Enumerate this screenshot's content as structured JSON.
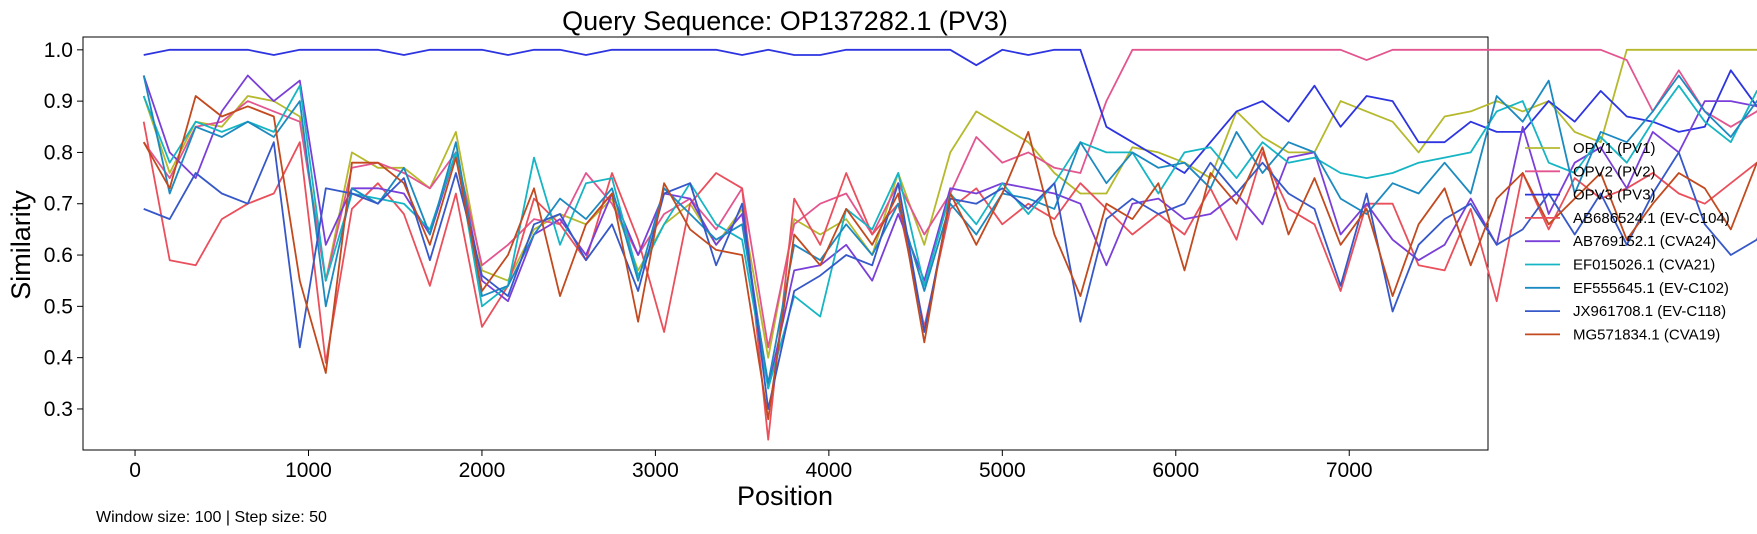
{
  "chart_data": {
    "type": "line",
    "title": "Query Sequence: OP137282.1 (PV3)",
    "xlabel": "Position",
    "ylabel": "Similarity",
    "xlim": [
      -300,
      7800
    ],
    "ylim": [
      0.22,
      1.025
    ],
    "xticks": [
      0,
      1000,
      2000,
      3000,
      4000,
      5000,
      6000,
      7000
    ],
    "yticks": [
      0.3,
      0.4,
      0.5,
      0.6,
      0.7,
      0.8,
      0.9,
      1.0
    ],
    "grid": false,
    "legend_position": "right",
    "x_start": 50,
    "x_step": 150,
    "series": [
      {
        "name": "OPV1 (PV1)",
        "color": "#b5b92b",
        "values": [
          0.91,
          0.76,
          0.86,
          0.85,
          0.91,
          0.9,
          0.87,
          0.55,
          0.8,
          0.77,
          0.77,
          0.73,
          0.84,
          0.57,
          0.55,
          0.65,
          0.68,
          0.66,
          0.71,
          0.57,
          0.66,
          0.7,
          0.62,
          0.69,
          0.4,
          0.67,
          0.64,
          0.67,
          0.6,
          0.76,
          0.62,
          0.8,
          0.88,
          0.85,
          0.82,
          0.76,
          0.72,
          0.72,
          0.81,
          0.8,
          0.78,
          0.75,
          0.88,
          0.83,
          0.8,
          0.8,
          0.9,
          0.88,
          0.86,
          0.8,
          0.87,
          0.88,
          0.9,
          0.88,
          0.9,
          0.84,
          0.82,
          1.0,
          1.0,
          1.0,
          1.0,
          1.0,
          1.0,
          0.99
        ]
      },
      {
        "name": "OPV2 (PV2)",
        "color": "#e3558f",
        "values": [
          0.82,
          0.75,
          0.85,
          0.86,
          0.9,
          0.88,
          0.86,
          0.55,
          0.77,
          0.78,
          0.76,
          0.73,
          0.8,
          0.58,
          0.62,
          0.67,
          0.66,
          0.76,
          0.7,
          0.6,
          0.68,
          0.71,
          0.65,
          0.73,
          0.42,
          0.66,
          0.7,
          0.72,
          0.64,
          0.74,
          0.64,
          0.72,
          0.83,
          0.78,
          0.8,
          0.77,
          0.76,
          0.9,
          1.0,
          1.0,
          1.0,
          1.0,
          1.0,
          1.0,
          1.0,
          1.0,
          1.0,
          0.98,
          1.0,
          1.0,
          1.0,
          1.0,
          1.0,
          1.0,
          1.0,
          1.0,
          1.0,
          0.98,
          0.88,
          0.96,
          0.88,
          0.85,
          0.88,
          0.95
        ]
      },
      {
        "name": "OPV3 (PV3)",
        "color": "#2d34e0",
        "values": [
          0.99,
          1.0,
          1.0,
          1.0,
          1.0,
          0.99,
          1.0,
          1.0,
          1.0,
          1.0,
          0.99,
          1.0,
          1.0,
          1.0,
          0.99,
          1.0,
          1.0,
          0.99,
          1.0,
          1.0,
          1.0,
          1.0,
          1.0,
          0.99,
          1.0,
          0.99,
          0.99,
          1.0,
          1.0,
          1.0,
          1.0,
          1.0,
          0.97,
          1.0,
          0.99,
          1.0,
          1.0,
          0.85,
          0.82,
          0.79,
          0.76,
          0.82,
          0.88,
          0.9,
          0.86,
          0.93,
          0.85,
          0.91,
          0.9,
          0.82,
          0.82,
          0.86,
          0.84,
          0.84,
          0.9,
          0.86,
          0.92,
          0.87,
          0.86,
          0.84,
          0.85,
          0.96,
          0.89,
          0.98
        ]
      },
      {
        "name": "AB686524.1 (EV-C104)",
        "color": "#ea4f5c",
        "values": [
          0.86,
          0.59,
          0.58,
          0.67,
          0.7,
          0.72,
          0.82,
          0.39,
          0.69,
          0.74,
          0.68,
          0.54,
          0.72,
          0.46,
          0.54,
          0.71,
          0.66,
          0.59,
          0.76,
          0.63,
          0.45,
          0.7,
          0.76,
          0.73,
          0.24,
          0.71,
          0.62,
          0.76,
          0.64,
          0.7,
          0.46,
          0.69,
          0.73,
          0.66,
          0.7,
          0.67,
          0.74,
          0.69,
          0.64,
          0.68,
          0.64,
          0.73,
          0.63,
          0.8,
          0.69,
          0.66,
          0.53,
          0.7,
          0.7,
          0.58,
          0.57,
          0.69,
          0.51,
          0.76,
          0.65,
          0.75,
          0.71,
          0.73,
          0.76,
          0.72,
          0.7,
          0.74,
          0.78,
          0.79
        ]
      },
      {
        "name": "AB769152.1 (CVA24)",
        "color": "#7a3fd8",
        "values": [
          0.95,
          0.8,
          0.75,
          0.88,
          0.95,
          0.9,
          0.94,
          0.62,
          0.73,
          0.73,
          0.72,
          0.64,
          0.8,
          0.55,
          0.51,
          0.64,
          0.67,
          0.6,
          0.72,
          0.6,
          0.72,
          0.71,
          0.62,
          0.68,
          0.34,
          0.57,
          0.58,
          0.62,
          0.55,
          0.68,
          0.55,
          0.73,
          0.72,
          0.74,
          0.73,
          0.72,
          0.7,
          0.58,
          0.7,
          0.71,
          0.67,
          0.68,
          0.72,
          0.66,
          0.79,
          0.8,
          0.64,
          0.7,
          0.63,
          0.59,
          0.62,
          0.71,
          0.62,
          0.85,
          0.68,
          0.78,
          0.81,
          0.73,
          0.84,
          0.8,
          0.9,
          0.9,
          0.89,
          0.97
        ]
      },
      {
        "name": "EF015026.1 (CVA21)",
        "color": "#15b5c4",
        "values": [
          0.91,
          0.78,
          0.86,
          0.84,
          0.86,
          0.84,
          0.93,
          0.55,
          0.72,
          0.71,
          0.7,
          0.65,
          0.8,
          0.5,
          0.54,
          0.79,
          0.62,
          0.74,
          0.75,
          0.56,
          0.66,
          0.74,
          0.66,
          0.63,
          0.34,
          0.52,
          0.48,
          0.69,
          0.65,
          0.76,
          0.54,
          0.72,
          0.66,
          0.74,
          0.68,
          0.74,
          0.82,
          0.8,
          0.8,
          0.72,
          0.8,
          0.81,
          0.75,
          0.82,
          0.78,
          0.79,
          0.76,
          0.75,
          0.76,
          0.78,
          0.79,
          0.8,
          0.88,
          0.9,
          0.78,
          0.76,
          0.83,
          0.78,
          0.86,
          0.93,
          0.86,
          0.82,
          0.92,
          0.91
        ]
      },
      {
        "name": "EF555645.1 (EV-C102)",
        "color": "#1c8ac0",
        "values": [
          0.95,
          0.72,
          0.85,
          0.83,
          0.86,
          0.83,
          0.9,
          0.5,
          0.73,
          0.7,
          0.77,
          0.64,
          0.82,
          0.52,
          0.54,
          0.64,
          0.71,
          0.67,
          0.73,
          0.55,
          0.73,
          0.68,
          0.63,
          0.66,
          0.35,
          0.62,
          0.59,
          0.66,
          0.6,
          0.7,
          0.53,
          0.7,
          0.64,
          0.72,
          0.71,
          0.69,
          0.82,
          0.74,
          0.8,
          0.77,
          0.78,
          0.73,
          0.84,
          0.76,
          0.82,
          0.8,
          0.71,
          0.68,
          0.74,
          0.72,
          0.78,
          0.72,
          0.91,
          0.86,
          0.94,
          0.72,
          0.84,
          0.82,
          0.88,
          0.95,
          0.88,
          0.83,
          0.9,
          0.95
        ]
      },
      {
        "name": "JX961708.1 (EV-C118)",
        "color": "#3658c8",
        "values": [
          0.69,
          0.67,
          0.76,
          0.72,
          0.7,
          0.82,
          0.42,
          0.73,
          0.72,
          0.7,
          0.75,
          0.59,
          0.76,
          0.56,
          0.52,
          0.66,
          0.68,
          0.59,
          0.66,
          0.53,
          0.72,
          0.74,
          0.58,
          0.7,
          0.3,
          0.53,
          0.56,
          0.6,
          0.58,
          0.74,
          0.45,
          0.71,
          0.7,
          0.73,
          0.69,
          0.74,
          0.47,
          0.67,
          0.71,
          0.68,
          0.7,
          0.78,
          0.72,
          0.78,
          0.72,
          0.69,
          0.54,
          0.72,
          0.49,
          0.62,
          0.67,
          0.7,
          0.62,
          0.65,
          0.72,
          0.64,
          0.72,
          0.62,
          0.72,
          0.8,
          0.66,
          0.6,
          0.63,
          0.76
        ]
      },
      {
        "name": "MG571834.1 (CVA19)",
        "color": "#c24a1e",
        "values": [
          0.82,
          0.73,
          0.91,
          0.87,
          0.89,
          0.87,
          0.55,
          0.37,
          0.78,
          0.78,
          0.74,
          0.62,
          0.79,
          0.53,
          0.6,
          0.73,
          0.52,
          0.66,
          0.72,
          0.47,
          0.74,
          0.65,
          0.61,
          0.6,
          0.28,
          0.64,
          0.58,
          0.69,
          0.62,
          0.72,
          0.43,
          0.72,
          0.62,
          0.72,
          0.84,
          0.64,
          0.52,
          0.7,
          0.67,
          0.74,
          0.57,
          0.76,
          0.7,
          0.81,
          0.64,
          0.75,
          0.62,
          0.69,
          0.52,
          0.66,
          0.73,
          0.58,
          0.71,
          0.76,
          0.66,
          0.71,
          0.76,
          0.63,
          0.7,
          0.76,
          0.73,
          0.65,
          0.78,
          0.78
        ]
      }
    ]
  },
  "caption": "Window size: 100 | Step size: 50"
}
